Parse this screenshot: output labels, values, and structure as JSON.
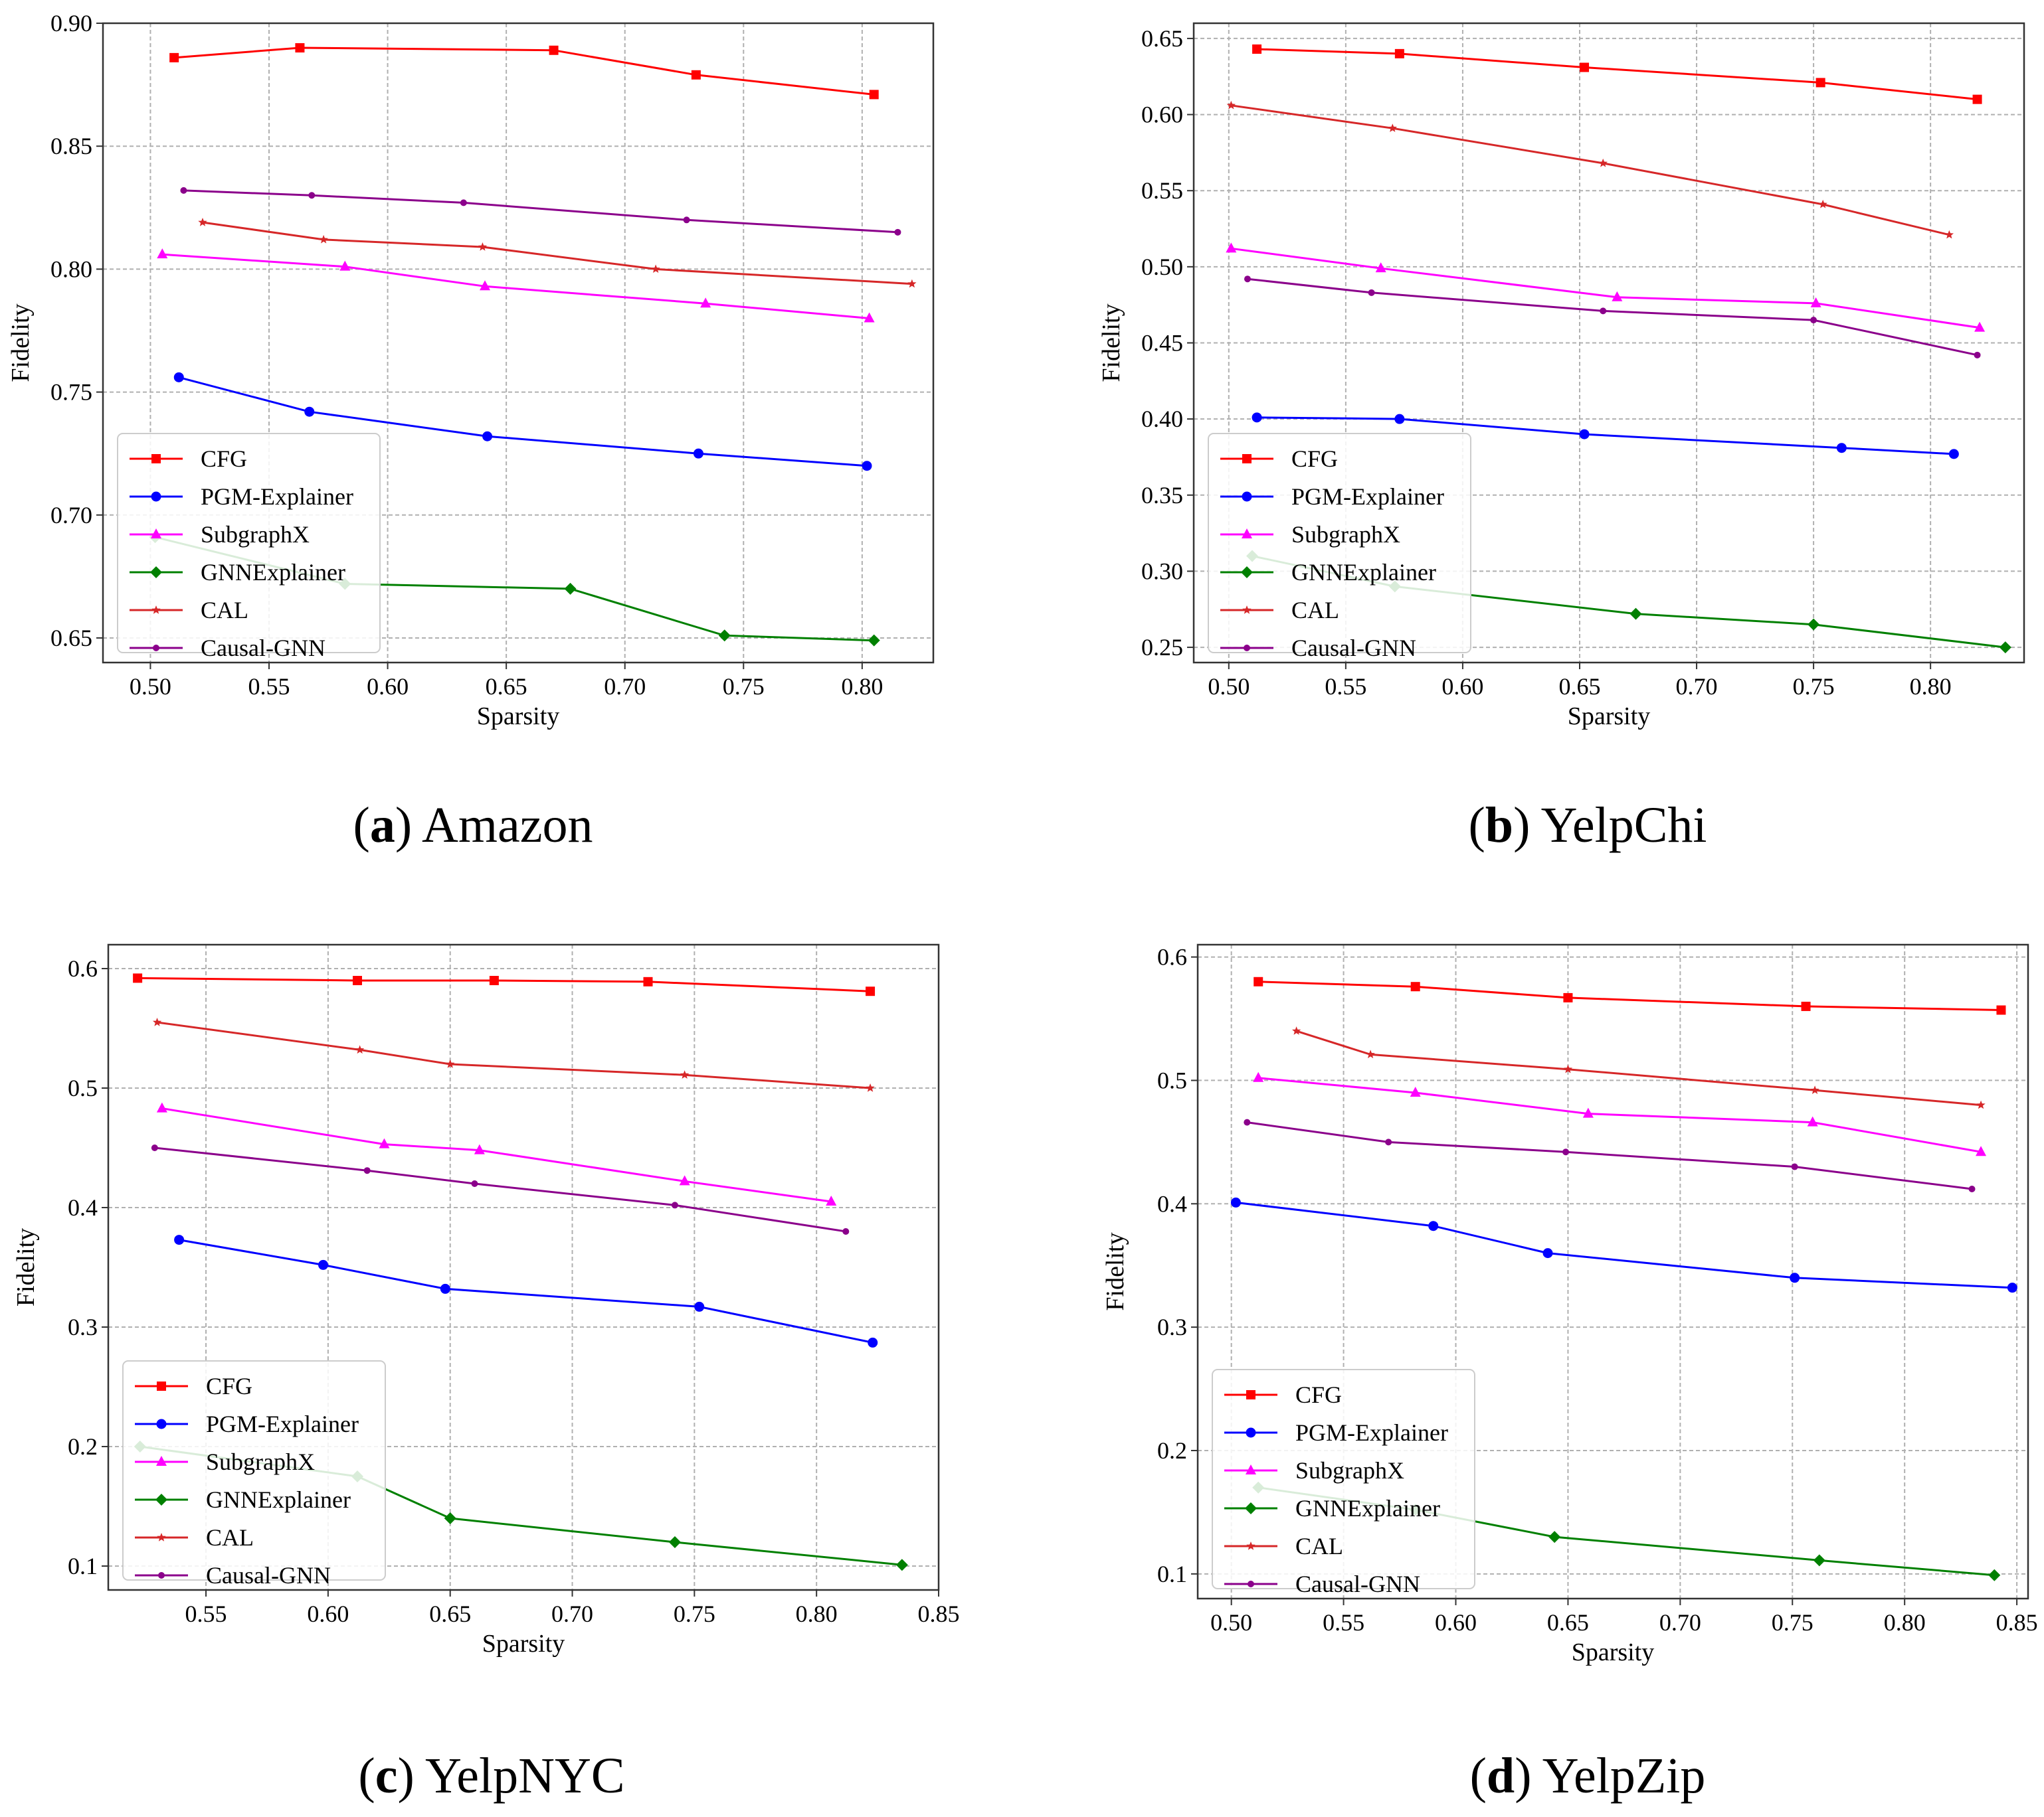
{
  "chart_data": [
    {
      "type": "line",
      "caption_letter": "a",
      "caption_name": "Amazon",
      "xlabel": "Sparsity",
      "ylabel": "Fidelity",
      "xlim": [
        0.48,
        0.83
      ],
      "ylim": [
        0.64,
        0.9
      ],
      "xticks": [
        0.5,
        0.55,
        0.6,
        0.65,
        0.7,
        0.75,
        0.8
      ],
      "yticks": [
        0.65,
        0.7,
        0.75,
        0.8,
        0.85,
        0.9
      ],
      "xtick_labels": [
        "0.50",
        "0.55",
        "0.60",
        "0.65",
        "0.70",
        "0.75",
        "0.80"
      ],
      "ytick_labels": [
        "0.65",
        "0.70",
        "0.75",
        "0.80",
        "0.85",
        "0.90"
      ],
      "legend": "lower-left",
      "grid": true,
      "series": [
        {
          "name": "CFG",
          "color": "#ff0000",
          "marker": "square",
          "x": [
            0.51,
            0.563,
            0.67,
            0.73,
            0.805
          ],
          "y": [
            0.886,
            0.89,
            0.889,
            0.879,
            0.871
          ]
        },
        {
          "name": "PGM-Explainer",
          "color": "#0000ff",
          "marker": "circle",
          "x": [
            0.512,
            0.567,
            0.642,
            0.731,
            0.802
          ],
          "y": [
            0.756,
            0.742,
            0.732,
            0.725,
            0.72
          ]
        },
        {
          "name": "SubgraphX",
          "color": "#ff00ff",
          "marker": "triangle",
          "x": [
            0.505,
            0.582,
            0.641,
            0.734,
            0.803
          ],
          "y": [
            0.806,
            0.801,
            0.793,
            0.786,
            0.78
          ]
        },
        {
          "name": "GNNExplainer",
          "color": "#008000",
          "marker": "diamond",
          "x": [
            0.502,
            0.582,
            0.677,
            0.742,
            0.805
          ],
          "y": [
            0.691,
            0.672,
            0.67,
            0.651,
            0.649
          ]
        },
        {
          "name": "CAL",
          "color": "#d62728",
          "marker": "star",
          "x": [
            0.522,
            0.573,
            0.64,
            0.713,
            0.821
          ],
          "y": [
            0.819,
            0.812,
            0.809,
            0.8,
            0.794
          ]
        },
        {
          "name": "Causal-GNN",
          "color": "#8b008b",
          "marker": "dot",
          "x": [
            0.514,
            0.568,
            0.632,
            0.726,
            0.815
          ],
          "y": [
            0.832,
            0.83,
            0.827,
            0.82,
            0.815
          ]
        }
      ]
    },
    {
      "type": "line",
      "caption_letter": "b",
      "caption_name": "YelpChi",
      "xlabel": "Sparsity",
      "ylabel": "Fidelity",
      "xlim": [
        0.485,
        0.84
      ],
      "ylim": [
        0.24,
        0.66
      ],
      "xticks": [
        0.5,
        0.55,
        0.6,
        0.65,
        0.7,
        0.75,
        0.8
      ],
      "yticks": [
        0.25,
        0.3,
        0.35,
        0.4,
        0.45,
        0.5,
        0.55,
        0.6,
        0.65
      ],
      "xtick_labels": [
        "0.50",
        "0.55",
        "0.60",
        "0.65",
        "0.70",
        "0.75",
        "0.80"
      ],
      "ytick_labels": [
        "0.25",
        "0.30",
        "0.35",
        "0.40",
        "0.45",
        "0.50",
        "0.55",
        "0.60",
        "0.65"
      ],
      "legend": "lower-left",
      "grid": true,
      "series": [
        {
          "name": "CFG",
          "color": "#ff0000",
          "marker": "square",
          "x": [
            0.512,
            0.573,
            0.652,
            0.753,
            0.82
          ],
          "y": [
            0.643,
            0.64,
            0.631,
            0.621,
            0.61
          ]
        },
        {
          "name": "PGM-Explainer",
          "color": "#0000ff",
          "marker": "circle",
          "x": [
            0.512,
            0.573,
            0.652,
            0.762,
            0.81
          ],
          "y": [
            0.401,
            0.4,
            0.39,
            0.381,
            0.377
          ]
        },
        {
          "name": "SubgraphX",
          "color": "#ff00ff",
          "marker": "triangle",
          "x": [
            0.501,
            0.565,
            0.666,
            0.751,
            0.821
          ],
          "y": [
            0.512,
            0.499,
            0.48,
            0.476,
            0.46
          ]
        },
        {
          "name": "GNNExplainer",
          "color": "#008000",
          "marker": "diamond",
          "x": [
            0.51,
            0.571,
            0.674,
            0.75,
            0.832
          ],
          "y": [
            0.31,
            0.29,
            0.272,
            0.265,
            0.25
          ]
        },
        {
          "name": "CAL",
          "color": "#d62728",
          "marker": "star",
          "x": [
            0.501,
            0.57,
            0.66,
            0.754,
            0.808
          ],
          "y": [
            0.606,
            0.591,
            0.568,
            0.541,
            0.521
          ]
        },
        {
          "name": "Causal-GNN",
          "color": "#8b008b",
          "marker": "dot",
          "x": [
            0.508,
            0.561,
            0.66,
            0.75,
            0.82
          ],
          "y": [
            0.492,
            0.483,
            0.471,
            0.465,
            0.442
          ]
        }
      ]
    },
    {
      "type": "line",
      "caption_letter": "c",
      "caption_name": "YelpNYC",
      "xlabel": "Sparsity",
      "ylabel": "Fidelity",
      "xlim": [
        0.51,
        0.85
      ],
      "ylim": [
        0.08,
        0.62
      ],
      "xticks": [
        0.55,
        0.6,
        0.65,
        0.7,
        0.75,
        0.8,
        0.85
      ],
      "yticks": [
        0.1,
        0.2,
        0.3,
        0.4,
        0.5,
        0.6
      ],
      "xtick_labels": [
        "0.55",
        "0.60",
        "0.65",
        "0.70",
        "0.75",
        "0.80",
        "0.85"
      ],
      "ytick_labels": [
        "0.1",
        "0.2",
        "0.3",
        "0.4",
        "0.5",
        "0.6"
      ],
      "legend": "lower-left",
      "grid": true,
      "series": [
        {
          "name": "CFG",
          "color": "#ff0000",
          "marker": "square",
          "x": [
            0.522,
            0.612,
            0.668,
            0.731,
            0.822
          ],
          "y": [
            0.592,
            0.59,
            0.59,
            0.589,
            0.581
          ]
        },
        {
          "name": "PGM-Explainer",
          "color": "#0000ff",
          "marker": "circle",
          "x": [
            0.539,
            0.598,
            0.648,
            0.752,
            0.823
          ],
          "y": [
            0.373,
            0.352,
            0.332,
            0.317,
            0.287
          ]
        },
        {
          "name": "SubgraphX",
          "color": "#ff00ff",
          "marker": "triangle",
          "x": [
            0.532,
            0.623,
            0.662,
            0.746,
            0.806
          ],
          "y": [
            0.483,
            0.453,
            0.448,
            0.422,
            0.405
          ]
        },
        {
          "name": "GNNExplainer",
          "color": "#008000",
          "marker": "diamond",
          "x": [
            0.523,
            0.612,
            0.65,
            0.742,
            0.835
          ],
          "y": [
            0.2,
            0.175,
            0.14,
            0.12,
            0.101
          ]
        },
        {
          "name": "CAL",
          "color": "#d62728",
          "marker": "star",
          "x": [
            0.53,
            0.613,
            0.65,
            0.746,
            0.822
          ],
          "y": [
            0.555,
            0.532,
            0.52,
            0.511,
            0.5
          ]
        },
        {
          "name": "Causal-GNN",
          "color": "#8b008b",
          "marker": "dot",
          "x": [
            0.529,
            0.616,
            0.66,
            0.742,
            0.812
          ],
          "y": [
            0.45,
            0.431,
            0.42,
            0.402,
            0.38
          ]
        }
      ]
    },
    {
      "type": "line",
      "caption_letter": "d",
      "caption_name": "YelpZip",
      "xlabel": "Sparsity",
      "ylabel": "Fidelity",
      "xlim": [
        0.485,
        0.855
      ],
      "ylim": [
        0.08,
        0.61
      ],
      "xticks": [
        0.5,
        0.55,
        0.6,
        0.65,
        0.7,
        0.75,
        0.8,
        0.85
      ],
      "yticks": [
        0.1,
        0.2,
        0.3,
        0.4,
        0.5,
        0.6
      ],
      "xtick_labels": [
        "0.50",
        "0.55",
        "0.60",
        "0.65",
        "0.70",
        "0.75",
        "0.80",
        "0.85"
      ],
      "ytick_labels": [
        "0.1",
        "0.2",
        "0.3",
        "0.4",
        "0.5",
        "0.6"
      ],
      "legend": "lower-left",
      "grid": true,
      "series": [
        {
          "name": "CFG",
          "color": "#ff0000",
          "marker": "square",
          "x": [
            0.512,
            0.582,
            0.65,
            0.756,
            0.843
          ],
          "y": [
            0.58,
            0.576,
            0.567,
            0.56,
            0.557
          ]
        },
        {
          "name": "PGM-Explainer",
          "color": "#0000ff",
          "marker": "circle",
          "x": [
            0.502,
            0.59,
            0.641,
            0.751,
            0.848
          ],
          "y": [
            0.401,
            0.382,
            0.36,
            0.34,
            0.332
          ]
        },
        {
          "name": "SubgraphX",
          "color": "#ff00ff",
          "marker": "triangle",
          "x": [
            0.512,
            0.582,
            0.659,
            0.759,
            0.834
          ],
          "y": [
            0.502,
            0.49,
            0.473,
            0.466,
            0.442
          ]
        },
        {
          "name": "GNNExplainer",
          "color": "#008000",
          "marker": "diamond",
          "x": [
            0.512,
            0.582,
            0.644,
            0.762,
            0.84
          ],
          "y": [
            0.17,
            0.152,
            0.13,
            0.111,
            0.099
          ]
        },
        {
          "name": "CAL",
          "color": "#d62728",
          "marker": "star",
          "x": [
            0.529,
            0.562,
            0.65,
            0.76,
            0.834
          ],
          "y": [
            0.54,
            0.521,
            0.509,
            0.492,
            0.48
          ]
        },
        {
          "name": "Causal-GNN",
          "color": "#8b008b",
          "marker": "dot",
          "x": [
            0.507,
            0.57,
            0.649,
            0.751,
            0.83
          ],
          "y": [
            0.466,
            0.45,
            0.442,
            0.43,
            0.412
          ]
        }
      ]
    }
  ]
}
